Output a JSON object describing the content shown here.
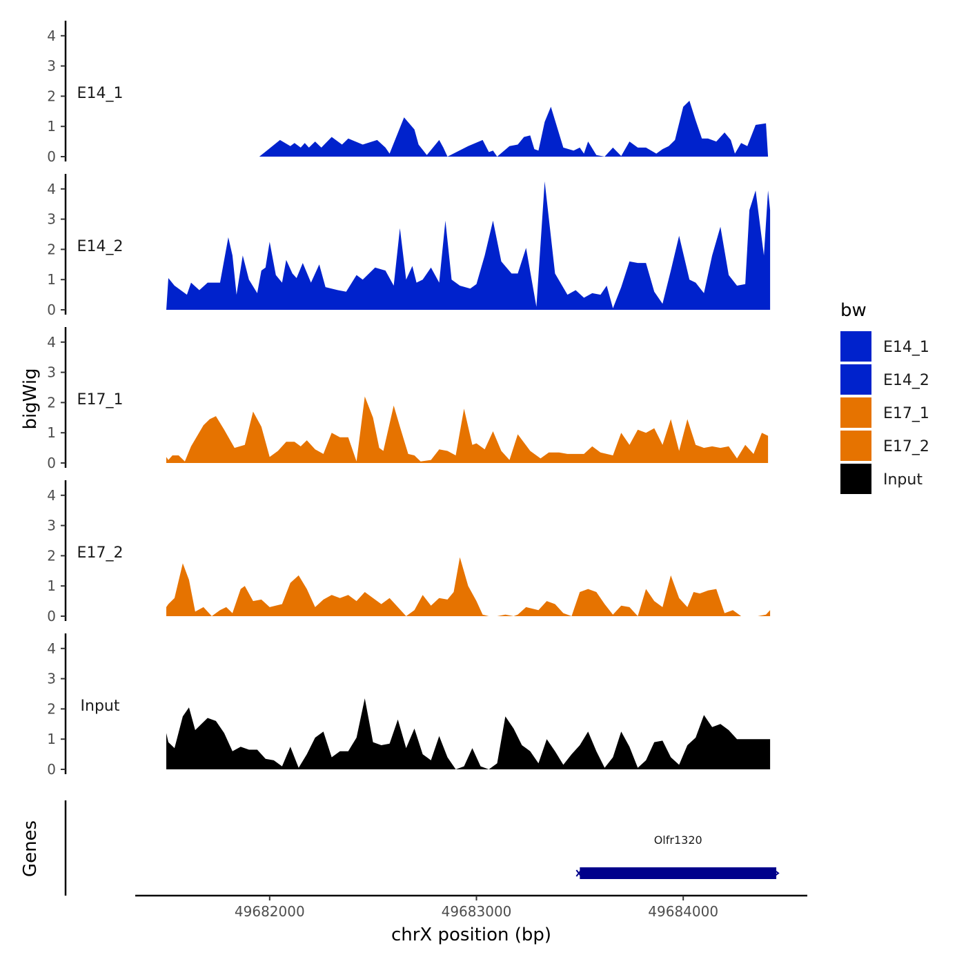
{
  "chart_data": {
    "type": "area",
    "title": "",
    "xlabel": "chrX position (bp)",
    "ylabel": "bigWig",
    "genes_label": "Genes",
    "xlim": [
      49681350,
      49684600
    ],
    "ylim": [
      0,
      4.5
    ],
    "x_ticks": [
      49682000,
      49683000,
      49684000
    ],
    "x_tick_labels": [
      "49682000",
      "49683000",
      "49684000"
    ],
    "y_ticks": [
      0,
      1,
      2,
      3,
      4
    ],
    "y_tick_labels": [
      "0",
      "1",
      "2",
      "3",
      "4"
    ],
    "legend": {
      "title": "bw",
      "position": "right",
      "entries": [
        {
          "name": "E14_1",
          "color": "#0022CC"
        },
        {
          "name": "E14_2",
          "color": "#0022CC"
        },
        {
          "name": "E17_1",
          "color": "#E67300"
        },
        {
          "name": "E17_2",
          "color": "#E67300"
        },
        {
          "name": "Input",
          "color": "#000000"
        }
      ]
    },
    "series": [
      {
        "name": "E14_1",
        "label": "E14_1",
        "color": "#0022CC",
        "x": [
          49681950,
          49682050,
          49682100,
          49682120,
          49682150,
          49682170,
          49682190,
          49682220,
          49682250,
          49682300,
          49682350,
          49682380,
          49682450,
          49682520,
          49682560,
          49682580,
          49682650,
          49682700,
          49682720,
          49682760,
          49682820,
          49682840,
          49682860,
          49682960,
          49683030,
          49683060,
          49683080,
          49683100,
          49683160,
          49683200,
          49683230,
          49683260,
          49683280,
          49683300,
          49683330,
          49683360,
          49683420,
          49683470,
          49683500,
          49683520,
          49683540,
          49683580,
          49683620,
          49683660,
          49683700,
          49683740,
          49683780,
          49683820,
          49683870,
          49683900,
          49683930,
          49683960,
          49684000,
          49684030,
          49684060,
          49684090,
          49684120,
          49684160,
          49684200,
          49684230,
          49684250,
          49684280,
          49684310,
          49684350,
          49684400,
          49684410
        ],
        "values": [
          0,
          0.55,
          0.35,
          0.45,
          0.3,
          0.45,
          0.3,
          0.5,
          0.3,
          0.65,
          0.4,
          0.6,
          0.4,
          0.55,
          0.3,
          0.1,
          1.3,
          0.9,
          0.4,
          0.05,
          0.55,
          0.3,
          0,
          0.35,
          0.55,
          0.15,
          0.2,
          0,
          0.35,
          0.4,
          0.65,
          0.7,
          0.25,
          0.2,
          1.15,
          1.65,
          0.3,
          0.2,
          0.3,
          0.1,
          0.5,
          0.05,
          0,
          0.3,
          0.02,
          0.5,
          0.3,
          0.3,
          0.1,
          0.25,
          0.35,
          0.55,
          1.65,
          1.85,
          1.2,
          0.6,
          0.6,
          0.5,
          0.8,
          0.55,
          0.1,
          0.45,
          0.35,
          1.05,
          1.1,
          0
        ],
        "y_range": [
          0,
          4.5
        ]
      },
      {
        "name": "E14_2",
        "label": "E14_2",
        "color": "#0022CC",
        "x": [
          49681500,
          49681510,
          49681540,
          49681600,
          49681620,
          49681660,
          49681700,
          49681760,
          49681800,
          49681820,
          49681840,
          49681870,
          49681900,
          49681940,
          49681960,
          49681980,
          49682000,
          49682030,
          49682060,
          49682080,
          49682110,
          49682130,
          49682160,
          49682200,
          49682240,
          49682270,
          49682330,
          49682370,
          49682420,
          49682450,
          49682510,
          49682560,
          49682600,
          49682630,
          49682660,
          49682690,
          49682710,
          49682740,
          49682780,
          49682820,
          49682850,
          49682880,
          49682920,
          49682970,
          49683000,
          49683040,
          49683080,
          49683120,
          49683170,
          49683200,
          49683240,
          49683290,
          49683330,
          49683380,
          49683440,
          49683480,
          49683520,
          49683560,
          49683600,
          49683630,
          49683660,
          49683700,
          49683740,
          49683780,
          49683820,
          49683860,
          49683900,
          49683940,
          49683980,
          49684030,
          49684060,
          49684100,
          49684140,
          49684180,
          49684220,
          49684260,
          49684300,
          49684320,
          49684350,
          49684390,
          49684410,
          49684420,
          49684420
        ],
        "values": [
          0,
          1.05,
          0.8,
          0.5,
          0.9,
          0.65,
          0.9,
          0.9,
          2.4,
          1.8,
          0.5,
          1.8,
          1.0,
          0.55,
          1.3,
          1.4,
          2.25,
          1.15,
          0.9,
          1.65,
          1.2,
          1.05,
          1.55,
          0.9,
          1.5,
          0.75,
          0.65,
          0.6,
          1.15,
          1.0,
          1.4,
          1.3,
          0.8,
          2.7,
          1.0,
          1.45,
          0.9,
          1.0,
          1.4,
          0.9,
          2.95,
          1.0,
          0.8,
          0.7,
          0.85,
          1.8,
          2.95,
          1.6,
          1.2,
          1.2,
          2.05,
          0.1,
          4.25,
          1.2,
          0.5,
          0.65,
          0.4,
          0.55,
          0.5,
          0.8,
          0.05,
          0.75,
          1.6,
          1.55,
          1.55,
          0.6,
          0.2,
          1.3,
          2.45,
          1.0,
          0.9,
          0.55,
          1.8,
          2.75,
          1.15,
          0.8,
          0.85,
          3.3,
          3.95,
          1.8,
          3.95,
          3.3,
          0
        ],
        "y_range": [
          0,
          4.5
        ]
      },
      {
        "name": "E17_1",
        "label": "E17_1",
        "color": "#E67300",
        "x": [
          49681500,
          49681510,
          49681530,
          49681560,
          49681590,
          49681620,
          49681680,
          49681710,
          49681740,
          49681780,
          49681830,
          49681880,
          49681920,
          49681960,
          49682000,
          49682040,
          49682080,
          49682120,
          49682150,
          49682180,
          49682220,
          49682260,
          49682300,
          49682340,
          49682380,
          49682420,
          49682460,
          49682500,
          49682530,
          49682550,
          49682600,
          49682630,
          49682670,
          49682700,
          49682730,
          49682780,
          49682820,
          49682860,
          49682900,
          49682940,
          49682980,
          49683000,
          49683040,
          49683080,
          49683120,
          49683160,
          49683200,
          49683260,
          49683310,
          49683350,
          49683400,
          49683440,
          49683480,
          49683520,
          49683560,
          49683600,
          49683660,
          49683700,
          49683740,
          49683780,
          49683820,
          49683860,
          49683900,
          49683940,
          49683980,
          49684020,
          49684060,
          49684100,
          49684140,
          49684180,
          49684220,
          49684260,
          49684300,
          49684340,
          49684380,
          49684410
        ],
        "values": [
          0.2,
          0.1,
          0.25,
          0.25,
          0.05,
          0.55,
          1.25,
          1.45,
          1.55,
          1.1,
          0.5,
          0.6,
          1.7,
          1.2,
          0.2,
          0.4,
          0.7,
          0.7,
          0.55,
          0.75,
          0.45,
          0.3,
          1.0,
          0.85,
          0.85,
          0.05,
          2.2,
          1.5,
          0.5,
          0.4,
          1.9,
          1.2,
          0.3,
          0.25,
          0.05,
          0.1,
          0.45,
          0.4,
          0.25,
          1.8,
          0.6,
          0.65,
          0.45,
          1.05,
          0.4,
          0.1,
          0.95,
          0.4,
          0.15,
          0.35,
          0.35,
          0.3,
          0.3,
          0.3,
          0.55,
          0.35,
          0.25,
          1.0,
          0.6,
          1.1,
          1.0,
          1.15,
          0.6,
          1.45,
          0.4,
          1.45,
          0.6,
          0.5,
          0.55,
          0.5,
          0.55,
          0.15,
          0.6,
          0.3,
          1.0,
          0.9
        ],
        "y_range": [
          0,
          4.5
        ]
      },
      {
        "name": "E17_2",
        "label": "E17_2",
        "color": "#E67300",
        "x": [
          49681500,
          49681510,
          49681540,
          49681580,
          49681610,
          49681640,
          49681680,
          49681720,
          49681760,
          49681790,
          49681820,
          49681860,
          49681880,
          49681920,
          49681960,
          49682000,
          49682060,
          49682100,
          49682140,
          49682180,
          49682220,
          49682260,
          49682300,
          49682340,
          49682380,
          49682420,
          49682460,
          49682500,
          49682540,
          49682580,
          49682620,
          49682660,
          49682700,
          49682740,
          49682780,
          49682820,
          49682860,
          49682890,
          49682920,
          49682960,
          49683000,
          49683030,
          49683060,
          49683100,
          49683140,
          49683180,
          49683200,
          49683240,
          49683300,
          49683340,
          49683380,
          49683420,
          49683460,
          49683500,
          49683540,
          49683580,
          49683620,
          49683660,
          49683700,
          49683740,
          49683780,
          49683820,
          49683860,
          49683900,
          49683940,
          49683980,
          49684020,
          49684050,
          49684080,
          49684120,
          49684160,
          49684200,
          49684240,
          49684280,
          49684320,
          49684360,
          49684400,
          49684420
        ],
        "values": [
          0.3,
          0.4,
          0.6,
          1.75,
          1.2,
          0.15,
          0.3,
          0.0,
          0.2,
          0.3,
          0.1,
          0.9,
          1.0,
          0.5,
          0.55,
          0.3,
          0.4,
          1.1,
          1.35,
          0.9,
          0.3,
          0.55,
          0.7,
          0.6,
          0.7,
          0.5,
          0.8,
          0.6,
          0.4,
          0.6,
          0.3,
          0.0,
          0.2,
          0.7,
          0.35,
          0.6,
          0.55,
          0.8,
          1.95,
          1.0,
          0.5,
          0.05,
          0.0,
          0.0,
          0.05,
          0.0,
          0.05,
          0.3,
          0.2,
          0.5,
          0.4,
          0.1,
          0.0,
          0.8,
          0.9,
          0.8,
          0.4,
          0.05,
          0.35,
          0.3,
          0.0,
          0.9,
          0.5,
          0.3,
          1.35,
          0.6,
          0.3,
          0.8,
          0.75,
          0.85,
          0.9,
          0.1,
          0.2,
          0.0,
          0.0,
          0.0,
          0.05,
          0.2
        ],
        "y_range": [
          0,
          4.5
        ]
      },
      {
        "name": "Input",
        "label": "Input",
        "color": "#000000",
        "x": [
          49681500,
          49681510,
          49681540,
          49681580,
          49681610,
          49681640,
          49681670,
          49681700,
          49681740,
          49681780,
          49681820,
          49681860,
          49681900,
          49681940,
          49681980,
          49682020,
          49682060,
          49682100,
          49682140,
          49682180,
          49682220,
          49682260,
          49682300,
          49682340,
          49682380,
          49682420,
          49682460,
          49682500,
          49682540,
          49682580,
          49682620,
          49682660,
          49682700,
          49682740,
          49682780,
          49682820,
          49682860,
          49682900,
          49682940,
          49682980,
          49683020,
          49683060,
          49683100,
          49683140,
          49683180,
          49683220,
          49683260,
          49683300,
          49683340,
          49683380,
          49683420,
          49683460,
          49683500,
          49683540,
          49683580,
          49683620,
          49683660,
          49683700,
          49683740,
          49683780,
          49683820,
          49683860,
          49683900,
          49683940,
          49683980,
          49684020,
          49684060,
          49684100,
          49684140,
          49684180,
          49684220,
          49684260,
          49684300,
          49684340,
          49684380,
          49684420
        ],
        "values": [
          1.2,
          0.9,
          0.7,
          1.75,
          2.05,
          1.3,
          1.5,
          1.7,
          1.6,
          1.2,
          0.6,
          0.75,
          0.65,
          0.65,
          0.35,
          0.3,
          0.1,
          0.75,
          0.05,
          0.5,
          1.05,
          1.25,
          0.4,
          0.6,
          0.6,
          1.05,
          2.35,
          0.9,
          0.8,
          0.85,
          1.65,
          0.7,
          1.35,
          0.5,
          0.3,
          1.1,
          0.4,
          0.0,
          0.1,
          0.7,
          0.1,
          0.0,
          0.2,
          1.75,
          1.35,
          0.8,
          0.6,
          0.2,
          1.0,
          0.6,
          0.15,
          0.5,
          0.8,
          1.25,
          0.6,
          0.05,
          0.4,
          1.25,
          0.75,
          0.05,
          0.3,
          0.9,
          0.95,
          0.4,
          0.15,
          0.8,
          1.05,
          1.8,
          1.4,
          1.5,
          1.3,
          1.0,
          1.0,
          1.0,
          1.0,
          1.0
        ],
        "y_range": [
          0,
          4.5
        ]
      }
    ],
    "genes": [
      {
        "name": "Olfr1320",
        "start": 49683500,
        "end": 49684450,
        "color": "#00008B",
        "strand": "+"
      }
    ]
  }
}
